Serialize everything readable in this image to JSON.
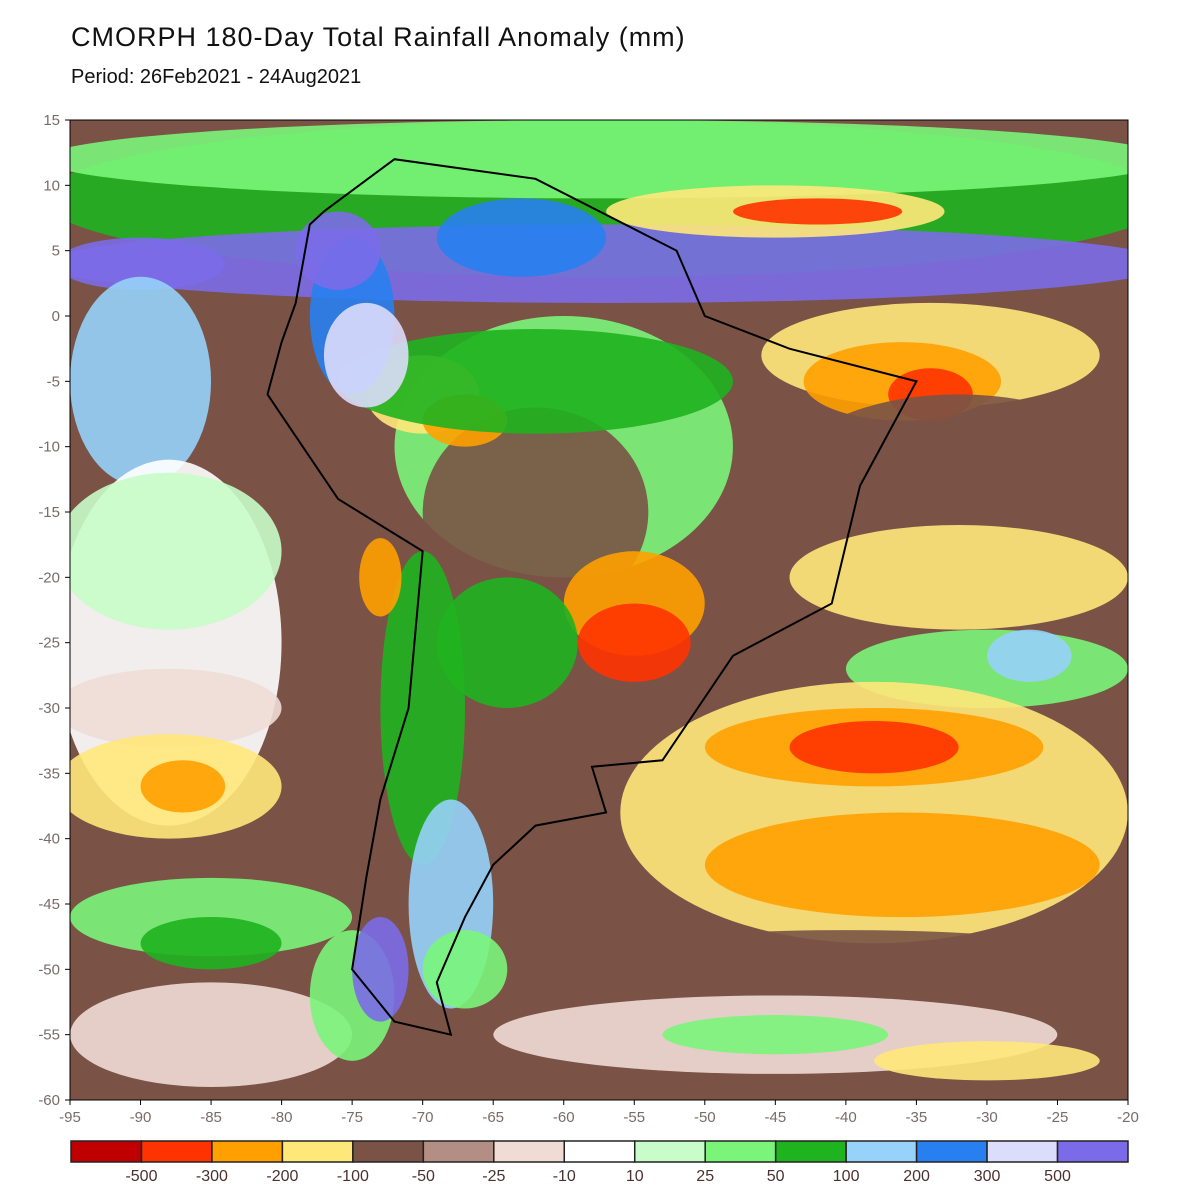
{
  "title": "CMORPH 180-Day Total Rainfall Anomaly (mm)",
  "period": "Period: 26Feb2021 - 24Aug2021",
  "map": {
    "lon_range": [
      -95,
      -20
    ],
    "lat_range": [
      -60,
      15
    ],
    "x_ticks": [
      -95,
      -90,
      -85,
      -80,
      -75,
      -70,
      -65,
      -60,
      -55,
      -50,
      -45,
      -40,
      -35,
      -30,
      -25,
      -20
    ],
    "y_ticks": [
      15,
      10,
      5,
      0,
      -5,
      -10,
      -15,
      -20,
      -25,
      -30,
      -35,
      -40,
      -45,
      -50,
      -55,
      -60
    ]
  },
  "colorbar": {
    "colors": [
      "#c00000",
      "#ff3300",
      "#ffa000",
      "#ffe87a",
      "#7a5346",
      "#b28e84",
      "#f0dcd5",
      "#ffffff",
      "#c8fcc8",
      "#7af57a",
      "#1fb31f",
      "#96d2fa",
      "#2880f0",
      "#dcdcfc",
      "#7b6be8"
    ],
    "labels": [
      "-500",
      "-300",
      "-200",
      "-100",
      "-50",
      "-25",
      "-10",
      "10",
      "25",
      "50",
      "100",
      "200",
      "300",
      "500"
    ]
  }
}
